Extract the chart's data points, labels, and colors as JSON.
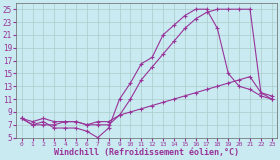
{
  "background_color": "#c8eaf0",
  "grid_color": "#aacccc",
  "line_color": "#993399",
  "xlabel": "Windchill (Refroidissement éolien,°C)",
  "xlabel_fontsize": 6,
  "xlim": [
    -0.5,
    23.5
  ],
  "ylim": [
    5,
    26
  ],
  "yticks": [
    5,
    7,
    9,
    11,
    13,
    15,
    17,
    19,
    21,
    23,
    25
  ],
  "xticks": [
    0,
    1,
    2,
    3,
    4,
    5,
    6,
    7,
    8,
    9,
    10,
    11,
    12,
    13,
    14,
    15,
    16,
    17,
    18,
    19,
    20,
    21,
    22,
    23
  ],
  "curve1_x": [
    0,
    1,
    2,
    3,
    4,
    5,
    6,
    7,
    8,
    9,
    10,
    11,
    12,
    13,
    14,
    15,
    16,
    17,
    18,
    19,
    20,
    21,
    22,
    23
  ],
  "curve1_y": [
    8.0,
    7.0,
    7.5,
    6.5,
    6.5,
    6.5,
    6.0,
    5.0,
    6.5,
    11.0,
    13.5,
    16.5,
    17.5,
    21.0,
    22.5,
    24.0,
    25.0,
    25.0,
    22.0,
    15.0,
    13.0,
    12.5,
    11.5,
    11.0
  ],
  "curve2_x": [
    0,
    1,
    2,
    3,
    4,
    5,
    6,
    7,
    8,
    9,
    10,
    11,
    12,
    13,
    14,
    15,
    16,
    17,
    18,
    19,
    20,
    21,
    22,
    23
  ],
  "curve2_y": [
    8.0,
    7.0,
    7.0,
    7.0,
    7.5,
    7.5,
    7.0,
    7.0,
    7.0,
    8.5,
    11.0,
    14.0,
    16.0,
    18.0,
    20.0,
    22.0,
    23.5,
    24.5,
    25.0,
    25.0,
    25.0,
    25.0,
    12.0,
    11.0
  ],
  "curve3_x": [
    0,
    1,
    2,
    3,
    4,
    5,
    6,
    7,
    8,
    9,
    10,
    11,
    12,
    13,
    14,
    15,
    16,
    17,
    18,
    19,
    20,
    21,
    22,
    23
  ],
  "curve3_y": [
    8.0,
    7.5,
    8.0,
    7.5,
    7.5,
    7.5,
    7.0,
    7.5,
    7.5,
    8.5,
    9.0,
    9.5,
    10.0,
    10.5,
    11.0,
    11.5,
    12.0,
    12.5,
    13.0,
    13.5,
    14.0,
    14.5,
    12.0,
    11.5
  ]
}
